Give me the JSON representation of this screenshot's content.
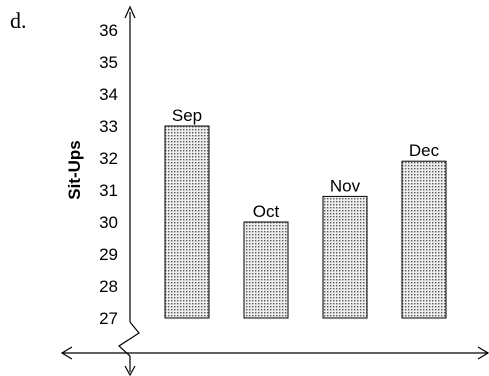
{
  "problem_label": "d.",
  "chart_data": {
    "type": "bar",
    "categories": [
      "Sep",
      "Oct",
      "Nov",
      "Dec"
    ],
    "values": [
      33,
      30,
      30.8,
      31.9
    ],
    "ylabel": "Sit-Ups",
    "xlabel": "",
    "ylim": [
      27,
      36
    ],
    "yticks": [
      27,
      28,
      29,
      30,
      31,
      32,
      33,
      34,
      35,
      36
    ],
    "axis_break": true,
    "bar_fill": "dotted-gray",
    "grid": false
  }
}
